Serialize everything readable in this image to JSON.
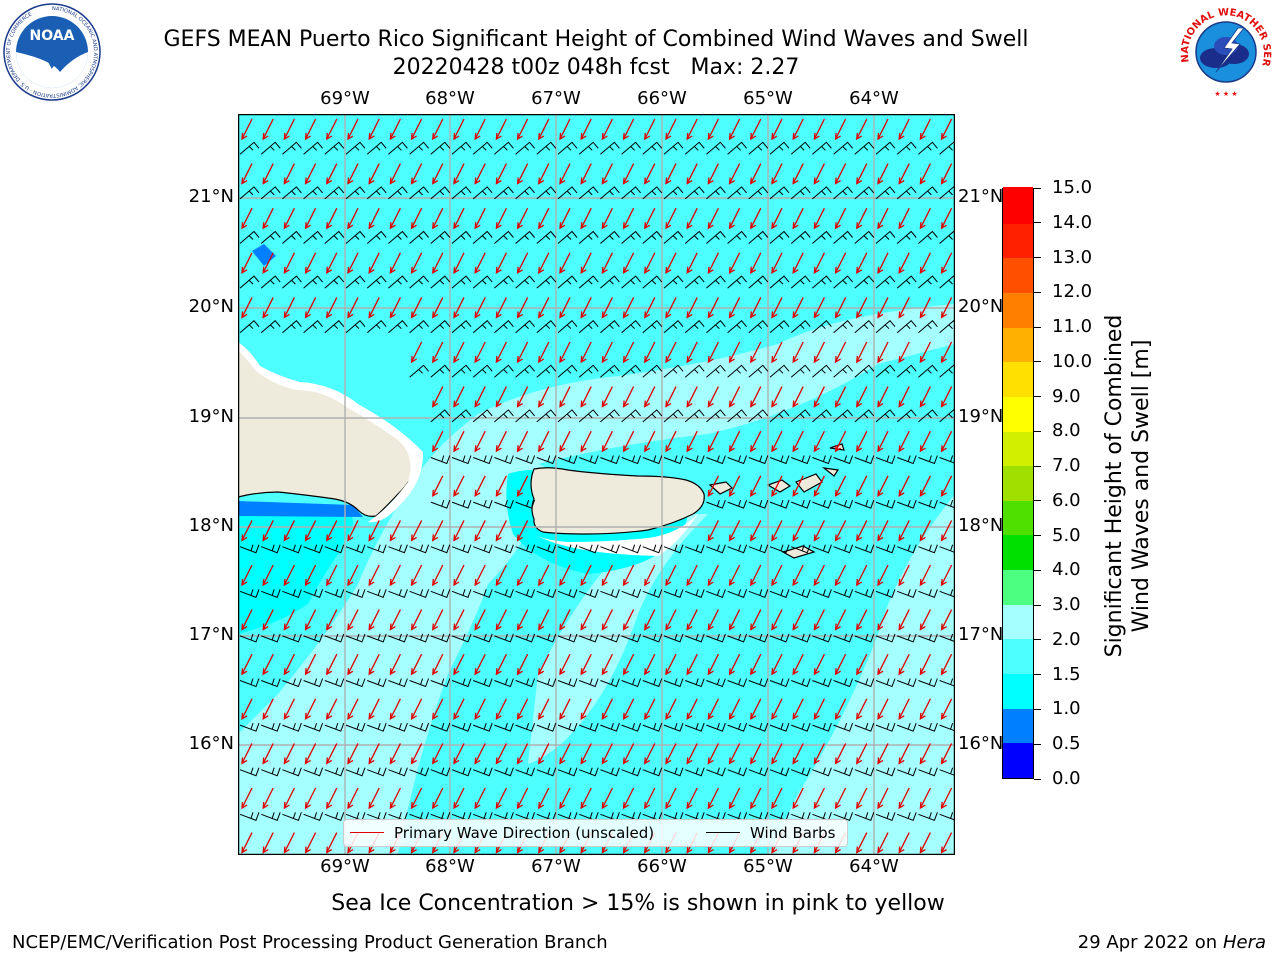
{
  "header": {
    "title_line1": "GEFS MEAN Puerto Rico Significant Height of Combined Wind Waves and Swell",
    "title_line2": "20220428 t00z 048h fcst   Max: 2.27"
  },
  "logos": {
    "noaa_text": "NOAA",
    "noaa_ring_text": "NATIONAL OCEANIC AND ATMOSPHERIC ADMINISTRATION · U.S. DEPARTMENT OF COMMERCE",
    "nws_ring_text": "NATIONAL WEATHER SERVICE"
  },
  "map": {
    "lon_labels": [
      "69°W",
      "68°W",
      "67°W",
      "66°W",
      "65°W",
      "64°W"
    ],
    "lat_labels": [
      "21°N",
      "20°N",
      "19°N",
      "18°N",
      "17°N",
      "16°N"
    ],
    "legend": {
      "wave_direction": "Primary Wave Direction (unscaled)",
      "wind_barbs": "Wind Barbs"
    },
    "colors": {
      "ocean_low": "#00ffff",
      "ocean_mid": "#4dffff",
      "ocean_high": "#a6ffff",
      "land": "#efebdc",
      "arrow": "#e00000",
      "barb": "#000000"
    }
  },
  "colorbar": {
    "label_line1": "Significant Height of Combined",
    "label_line2": "Wind Waves and Swell [m]",
    "ticks": [
      "0.0",
      "0.5",
      "1.0",
      "1.5",
      "2.0",
      "3.0",
      "4.0",
      "5.0",
      "6.0",
      "7.0",
      "8.0",
      "9.0",
      "10.0",
      "11.0",
      "12.0",
      "13.0",
      "14.0",
      "15.0"
    ],
    "colors": [
      "#0000ff",
      "#0080ff",
      "#00ffff",
      "#4dffff",
      "#a6ffff",
      "#4dff80",
      "#00e000",
      "#50e000",
      "#a0e000",
      "#d0f000",
      "#ffff00",
      "#ffe000",
      "#ffb000",
      "#ff8000",
      "#ff5000",
      "#ff2000",
      "#ff0000"
    ]
  },
  "note": "Sea Ice Concentration > 15% is shown in pink to yellow",
  "footer": {
    "left": "NCEP/EMC/Verification Post Processing Product Generation Branch",
    "date": "29 Apr 2022 on ",
    "machine": "Hera"
  }
}
